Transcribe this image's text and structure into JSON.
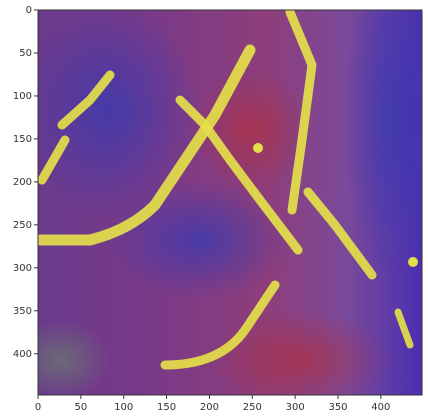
{
  "chart_data": {
    "type": "image",
    "xlim": [
      0,
      448
    ],
    "ylim": [
      448,
      0
    ],
    "xticks": [
      0,
      50,
      100,
      150,
      200,
      250,
      300,
      350,
      400
    ],
    "yticks": [
      0,
      50,
      100,
      150,
      200,
      250,
      300,
      350,
      400
    ]
  }
}
